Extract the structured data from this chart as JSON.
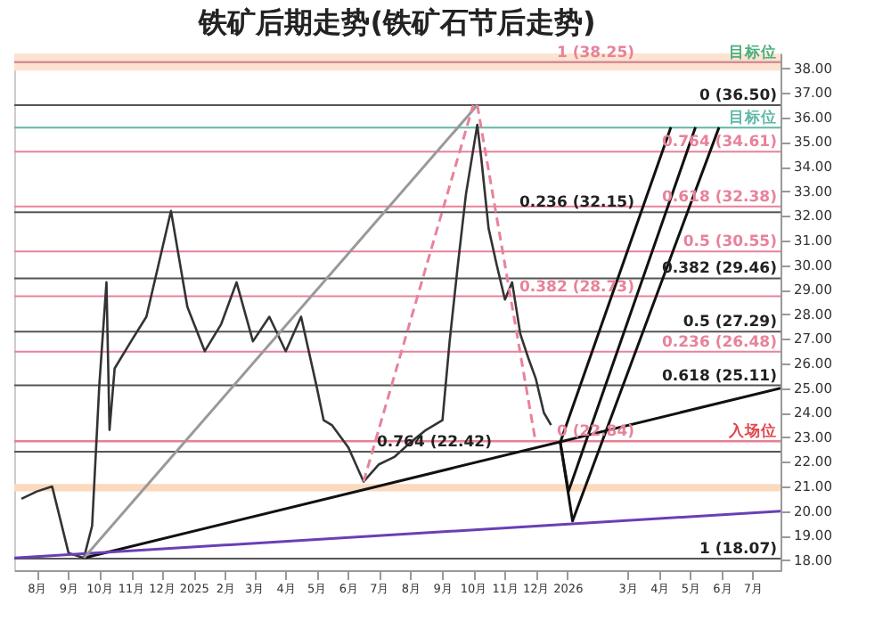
{
  "chart_data": {
    "type": "line",
    "title": "铁矿后期走势(铁矿石节后走势)",
    "xlim": [
      "2024-07-10",
      "2026-07-28"
    ],
    "xticks": [
      {
        "value": "2024-08-01",
        "label": "8月"
      },
      {
        "value": "2024-09-01",
        "label": "9月"
      },
      {
        "value": "2024-10-01",
        "label": "10月"
      },
      {
        "value": "2024-11-01",
        "label": "11月"
      },
      {
        "value": "2024-12-01",
        "label": "12月"
      },
      {
        "value": "2025-01-01",
        "label": "2025"
      },
      {
        "value": "2025-02-01",
        "label": "2月"
      },
      {
        "value": "2025-03-01",
        "label": "3月"
      },
      {
        "value": "2025-04-01",
        "label": "4月"
      },
      {
        "value": "2025-05-01",
        "label": "5月"
      },
      {
        "value": "2025-06-01",
        "label": "6月"
      },
      {
        "value": "2025-07-01",
        "label": "7月"
      },
      {
        "value": "2025-08-01",
        "label": "8月"
      },
      {
        "value": "2025-09-01",
        "label": "9月"
      },
      {
        "value": "2025-10-01",
        "label": "10月"
      },
      {
        "value": "2025-11-01",
        "label": "11月"
      },
      {
        "value": "2025-12-01",
        "label": "12月"
      },
      {
        "value": "2026-01-01",
        "label": "2026"
      },
      {
        "value": "2026-03-01",
        "label": "3月"
      },
      {
        "value": "2026-04-01",
        "label": "4月"
      },
      {
        "value": "2026-05-01",
        "label": "5月"
      },
      {
        "value": "2026-06-01",
        "label": "6月"
      },
      {
        "value": "2026-07-01",
        "label": "7月"
      }
    ],
    "ylim": [
      17.6,
      38.6
    ],
    "yticks": [
      {
        "value": 18,
        "label": "18.00"
      },
      {
        "value": 19,
        "label": "19.00"
      },
      {
        "value": 20,
        "label": "20.00"
      },
      {
        "value": 21,
        "label": "21.00"
      },
      {
        "value": 22,
        "label": "22.00"
      },
      {
        "value": 23,
        "label": "23.00"
      },
      {
        "value": 24,
        "label": "24.00"
      },
      {
        "value": 25,
        "label": "25.00"
      },
      {
        "value": 26,
        "label": "26.00"
      },
      {
        "value": 27,
        "label": "27.00"
      },
      {
        "value": 28,
        "label": "28.00"
      },
      {
        "value": 29,
        "label": "29.00"
      },
      {
        "value": 30,
        "label": "30.00"
      },
      {
        "value": 31,
        "label": "31.00"
      },
      {
        "value": 32,
        "label": "32.00"
      },
      {
        "value": 33,
        "label": "33.00"
      },
      {
        "value": 34,
        "label": "34.00"
      },
      {
        "value": 35,
        "label": "35.00"
      },
      {
        "value": 36,
        "label": "36.00"
      },
      {
        "value": 37,
        "label": "37.00"
      },
      {
        "value": 38,
        "label": "38.00"
      }
    ],
    "series": [
      {
        "color": "#333333",
        "x": [
          "2024-07-17",
          "2024-08-01",
          "2024-08-16",
          "2024-09-01",
          "2024-09-16",
          "2024-09-24",
          "2024-10-01",
          "2024-10-08",
          "2024-10-11",
          "2024-10-16",
          "2024-11-01",
          "2024-11-16",
          "2024-12-10",
          "2024-12-26",
          "2025-01-12",
          "2025-01-28",
          "2025-02-12",
          "2025-02-28",
          "2025-03-16",
          "2025-04-01",
          "2025-04-16",
          "2025-05-01",
          "2025-05-08",
          "2025-05-16",
          "2025-06-01",
          "2025-06-16",
          "2025-07-01",
          "2025-07-16",
          "2025-08-01",
          "2025-08-16",
          "2025-09-01",
          "2025-09-08",
          "2025-09-16",
          "2025-09-24",
          "2025-10-05",
          "2025-10-09",
          "2025-10-16",
          "2025-10-24",
          "2025-11-01",
          "2025-11-08",
          "2025-11-16",
          "2025-11-24",
          "2025-12-01",
          "2025-12-09",
          "2025-12-16"
        ],
        "values": [
          20.5,
          20.8,
          21.0,
          18.3,
          18.1,
          19.4,
          25.1,
          29.3,
          23.3,
          25.8,
          26.9,
          27.9,
          32.2,
          28.3,
          26.5,
          27.6,
          29.3,
          26.9,
          27.9,
          26.5,
          27.9,
          25.1,
          23.7,
          23.5,
          22.6,
          21.2,
          21.9,
          22.2,
          22.8,
          23.3,
          23.7,
          26.9,
          30.0,
          32.9,
          35.7,
          34.3,
          31.5,
          30.0,
          28.6,
          29.3,
          27.2,
          26.2,
          25.4,
          24.0,
          23.5
        ]
      },
      {
        "color": "#111111",
        "x": [
          "2024-09-16",
          "2026-07-28"
        ],
        "values": [
          18.1,
          25.0
        ]
      },
      {
        "color": "#6a3fb5",
        "x": [
          "2024-07-10",
          "2026-07-28"
        ],
        "values": [
          18.1,
          20.0
        ]
      },
      {
        "color": "#999999",
        "x": [
          "2024-09-16",
          "2025-10-05"
        ],
        "values": [
          18.1,
          36.5
        ]
      },
      {
        "color": "#e8829a",
        "line_style": "dashed",
        "x": [
          "2025-06-16",
          "2025-10-01"
        ],
        "values": [
          21.2,
          36.5
        ]
      },
      {
        "color": "#e8829a",
        "line_style": "dashed",
        "x": [
          "2025-10-05",
          "2025-12-01"
        ],
        "values": [
          36.5,
          22.8
        ]
      },
      {
        "color": "#111111",
        "x": [
          "2025-12-25",
          "2026-04-12"
        ],
        "values": [
          22.8,
          35.6
        ]
      },
      {
        "color": "#111111",
        "x": [
          "2025-12-25",
          "2026-01-02",
          "2026-05-06"
        ],
        "values": [
          22.8,
          20.8,
          35.6
        ]
      },
      {
        "color": "#111111",
        "x": [
          "2025-12-25",
          "2026-01-06",
          "2026-05-29"
        ],
        "values": [
          22.8,
          19.6,
          35.6
        ]
      }
    ],
    "ref_lines": [
      {
        "axis": "y",
        "value": 38.25,
        "label": "目标位",
        "color": "#4caf7d"
      },
      {
        "axis": "y",
        "value": 38.25,
        "label": "1 (38.25)",
        "color": "#e8829a"
      },
      {
        "axis": "y",
        "value": 36.5,
        "label": "0 (36.50)",
        "color": "#555555"
      },
      {
        "axis": "y",
        "value": 35.59,
        "label": "目标位",
        "color": "#5fb8a8"
      },
      {
        "axis": "y",
        "value": 34.61,
        "label": "0.764 (34.61)",
        "color": "#e8829a"
      },
      {
        "axis": "y",
        "value": 32.38,
        "label": "0.618 (32.38)",
        "color": "#e8829a"
      },
      {
        "axis": "y",
        "value": 32.15,
        "label": "0.236 (32.15)",
        "color": "#555555"
      },
      {
        "axis": "y",
        "value": 30.55,
        "label": "0.5 (30.55)",
        "color": "#e8829a"
      },
      {
        "axis": "y",
        "value": 29.46,
        "label": "0.382 (29.46)",
        "color": "#555555"
      },
      {
        "axis": "y",
        "value": 28.73,
        "label": "0.382 (28.73)",
        "color": "#e8829a"
      },
      {
        "axis": "y",
        "value": 27.29,
        "label": "0.5 (27.29)",
        "color": "#555555"
      },
      {
        "axis": "y",
        "value": 26.48,
        "label": "0.236 (26.48)",
        "color": "#e8829a"
      },
      {
        "axis": "y",
        "value": 25.11,
        "label": "0.618 (25.11)",
        "color": "#555555"
      },
      {
        "axis": "y",
        "value": 22.84,
        "label": "入场位",
        "color": "#e0474c"
      },
      {
        "axis": "y",
        "value": 22.84,
        "label": "0 (22.84)",
        "color": "#e8829a"
      },
      {
        "axis": "y",
        "value": 22.42,
        "label": "0.764 (22.42)",
        "color": "#555555"
      },
      {
        "axis": "y",
        "value": 18.07,
        "label": "1 (18.07)",
        "color": "#555555"
      }
    ],
    "bands": [
      {
        "axis": "y",
        "from": 20.8,
        "to": 21.1,
        "color": "#fbd9bd"
      },
      {
        "axis": "y",
        "from": 37.9,
        "to": 38.6,
        "color": "#fde3cf"
      }
    ]
  }
}
